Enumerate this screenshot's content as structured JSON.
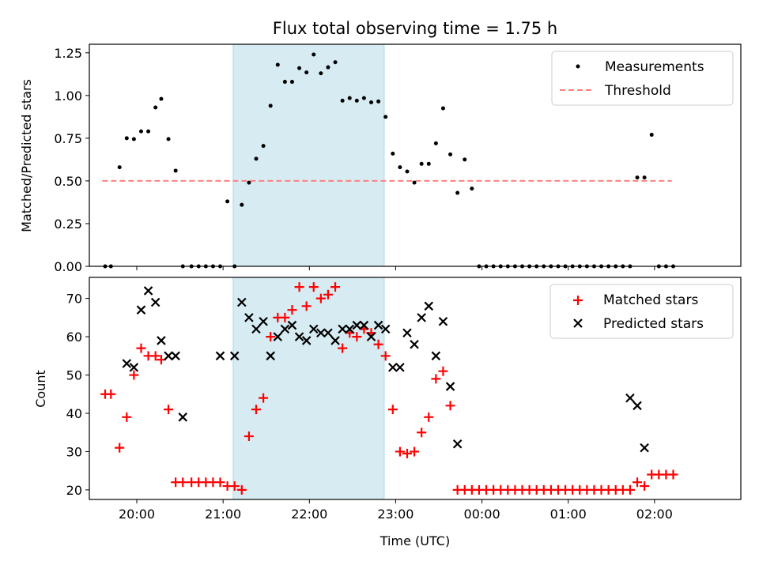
{
  "figure": {
    "title": "Flux total observing time = 1.75 h",
    "x_tick_labels": [
      "20:00",
      "21:00",
      "22:00",
      "23:00",
      "00:00",
      "01:00",
      "02:00"
    ],
    "xlabel": "Time (UTC)"
  },
  "colors": {
    "shade": "#add8e6",
    "measurement": "#000000",
    "threshold": "#ff8080",
    "matched": "#ff0000",
    "predicted": "#000000"
  },
  "chart_data": [
    {
      "type": "scatter",
      "ylabel": "Matched/Predicted stars",
      "xlim": [
        "19:27",
        "03:00"
      ],
      "ylim": [
        0,
        1.3
      ],
      "y_ticks": [
        0.0,
        0.25,
        0.5,
        0.75,
        1.0,
        1.25
      ],
      "y_tick_labels": [
        "0.00",
        "0.25",
        "0.50",
        "0.75",
        "1.00",
        "1.25"
      ],
      "shaded_span": [
        "21:07",
        "22:52"
      ],
      "legend": {
        "position": "top-right",
        "entries": [
          "Measurements",
          "Threshold"
        ]
      },
      "threshold": {
        "name": "Threshold",
        "y": 0.5,
        "x_start": "19:36",
        "x_end": "02:12"
      },
      "series": [
        {
          "name": "Measurements",
          "x": [
            "19:38",
            "19:42",
            "19:48",
            "19:53",
            "19:58",
            "20:03",
            "20:08",
            "20:13",
            "20:17",
            "20:22",
            "20:27",
            "20:32",
            "20:38",
            "20:43",
            "20:48",
            "20:53",
            "20:58",
            "21:03",
            "21:08",
            "21:13",
            "21:18",
            "21:23",
            "21:28",
            "21:33",
            "21:38",
            "21:43",
            "21:48",
            "21:53",
            "21:58",
            "22:03",
            "22:08",
            "22:13",
            "22:18",
            "22:23",
            "22:28",
            "22:33",
            "22:38",
            "22:43",
            "22:48",
            "22:53",
            "22:58",
            "23:03",
            "23:08",
            "23:13",
            "23:18",
            "23:23",
            "23:28",
            "23:33",
            "23:38",
            "23:43",
            "23:48",
            "23:53",
            "23:58",
            "00:03",
            "00:08",
            "00:13",
            "00:18",
            "00:23",
            "00:28",
            "00:33",
            "00:38",
            "00:43",
            "00:48",
            "00:53",
            "00:58",
            "01:03",
            "01:08",
            "01:13",
            "01:18",
            "01:23",
            "01:28",
            "01:33",
            "01:38",
            "01:43",
            "01:48",
            "01:53",
            "01:58",
            "02:03",
            "02:08",
            "02:13"
          ],
          "y": [
            0.0,
            0.0,
            0.58,
            0.75,
            0.745,
            0.79,
            0.79,
            0.93,
            0.98,
            0.745,
            0.56,
            0.0,
            0.0,
            0.0,
            0.0,
            0.0,
            0.0,
            0.38,
            0.0,
            0.36,
            0.49,
            0.63,
            0.705,
            0.94,
            1.18,
            1.08,
            1.08,
            1.16,
            1.135,
            1.24,
            1.13,
            1.165,
            1.195,
            0.97,
            0.985,
            0.97,
            0.985,
            0.96,
            0.965,
            0.875,
            0.66,
            0.58,
            0.555,
            0.49,
            0.6,
            0.6,
            0.72,
            0.925,
            0.655,
            0.43,
            0.625,
            0.455,
            0.0,
            0.0,
            0.0,
            0.0,
            0.0,
            0.0,
            0.0,
            0.0,
            0.0,
            0.0,
            0.0,
            0.0,
            0.0,
            0.0,
            0.0,
            0.0,
            0.0,
            0.0,
            0.0,
            0.0,
            0.0,
            0.0,
            0.52,
            0.52,
            0.77,
            0.0,
            0.0,
            0.0
          ]
        }
      ]
    },
    {
      "type": "scatter",
      "ylabel": "Count",
      "xlim": [
        "19:27",
        "03:00"
      ],
      "ylim": [
        17.5,
        75.5
      ],
      "y_ticks": [
        20,
        30,
        40,
        50,
        60,
        70
      ],
      "y_tick_labels": [
        "20",
        "30",
        "40",
        "50",
        "60",
        "70"
      ],
      "shaded_span": [
        "21:07",
        "22:52"
      ],
      "legend": {
        "position": "top-right",
        "entries": [
          "Matched stars",
          "Predicted stars"
        ]
      },
      "series": [
        {
          "name": "Matched stars",
          "marker": "plus",
          "x": [
            "19:38",
            "19:42",
            "19:48",
            "19:53",
            "19:58",
            "20:03",
            "20:08",
            "20:13",
            "20:17",
            "20:22",
            "20:27",
            "20:32",
            "20:38",
            "20:43",
            "20:48",
            "20:53",
            "20:58",
            "21:03",
            "21:08",
            "21:13",
            "21:18",
            "21:23",
            "21:28",
            "21:33",
            "21:38",
            "21:43",
            "21:48",
            "21:53",
            "21:58",
            "22:03",
            "22:08",
            "22:13",
            "22:18",
            "22:23",
            "22:28",
            "22:33",
            "22:38",
            "22:43",
            "22:48",
            "22:53",
            "22:58",
            "23:03",
            "23:08",
            "23:13",
            "23:18",
            "23:23",
            "23:28",
            "23:33",
            "23:38",
            "23:43",
            "23:48",
            "23:53",
            "23:58",
            "00:03",
            "00:08",
            "00:13",
            "00:18",
            "00:23",
            "00:28",
            "00:33",
            "00:38",
            "00:43",
            "00:48",
            "00:53",
            "00:58",
            "01:03",
            "01:08",
            "01:13",
            "01:18",
            "01:23",
            "01:28",
            "01:33",
            "01:38",
            "01:43",
            "01:48",
            "01:53",
            "01:58",
            "02:03",
            "02:08",
            "02:13"
          ],
          "y": [
            45,
            45,
            31,
            39,
            50,
            57,
            55,
            55,
            54,
            41,
            22,
            22,
            22,
            22,
            22,
            22,
            22,
            21,
            21,
            20,
            34,
            41,
            44,
            60,
            65,
            65,
            67,
            73,
            68,
            73,
            70,
            71,
            73,
            57,
            61,
            60,
            62,
            61,
            58,
            55,
            41,
            30,
            29.5,
            30,
            35,
            39,
            49,
            51,
            42,
            20,
            20,
            20,
            20,
            20,
            20,
            20,
            20,
            20,
            20,
            20,
            20,
            20,
            20,
            20,
            20,
            20,
            20,
            20,
            20,
            20,
            20,
            20,
            20,
            20,
            22,
            21,
            24,
            24,
            24,
            24
          ]
        },
        {
          "name": "Predicted stars",
          "marker": "x",
          "x": [
            "19:53",
            "19:58",
            "20:03",
            "20:08",
            "20:13",
            "20:17",
            "20:22",
            "20:27",
            "20:32",
            "20:58",
            "21:08",
            "21:13",
            "21:18",
            "21:23",
            "21:28",
            "21:33",
            "21:38",
            "21:43",
            "21:48",
            "21:53",
            "21:58",
            "22:03",
            "22:08",
            "22:13",
            "22:18",
            "22:23",
            "22:28",
            "22:33",
            "22:38",
            "22:43",
            "22:48",
            "22:53",
            "22:58",
            "23:03",
            "23:08",
            "23:13",
            "23:18",
            "23:23",
            "23:28",
            "23:33",
            "23:38",
            "23:43",
            "01:43",
            "01:48",
            "01:53"
          ],
          "y": [
            53,
            52,
            67,
            72,
            69,
            59,
            55,
            55,
            39,
            55,
            55,
            69,
            65,
            62,
            64,
            55,
            60,
            62,
            63,
            60,
            59,
            62,
            61,
            61,
            59,
            62,
            62,
            63,
            63,
            60,
            63,
            62,
            52,
            52,
            61,
            58,
            65,
            68,
            55,
            64,
            47,
            32,
            44,
            42,
            31
          ]
        }
      ]
    }
  ]
}
